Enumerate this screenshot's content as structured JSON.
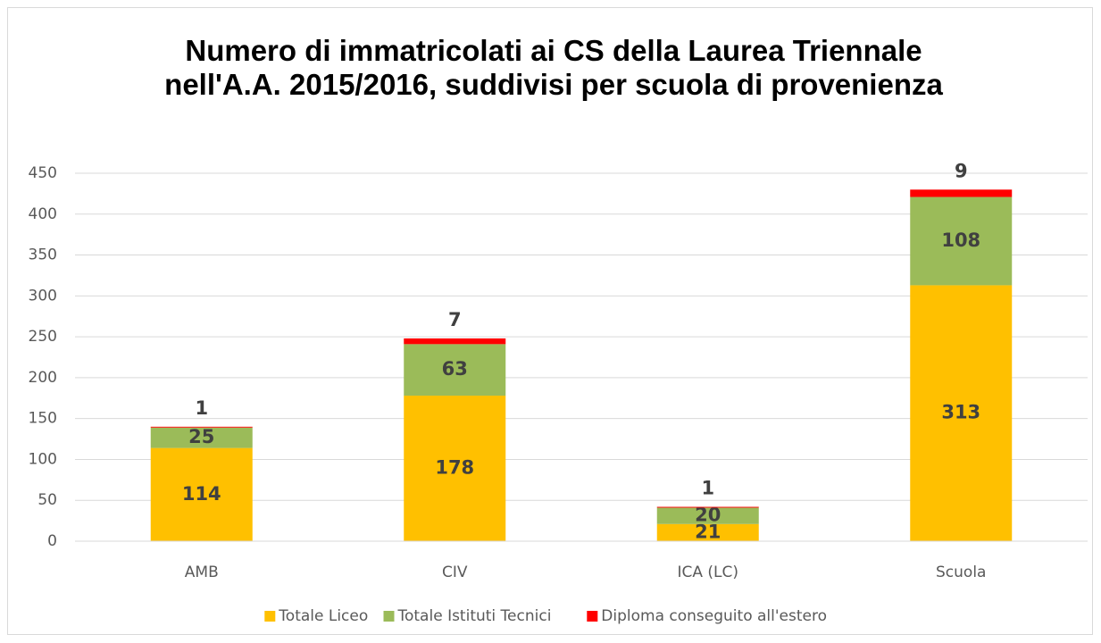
{
  "chart_data": {
    "type": "stacked_bar",
    "title": "Numero di immatricolati ai CS della Laurea Triennale nell'A.A. 2015/2016, suddivisi per scuola di provenienza",
    "categories": [
      "AMB",
      "CIV",
      "ICA (LC)",
      "Scuola"
    ],
    "series": [
      {
        "name": "Totale Liceo",
        "color": "#FFC000",
        "values": [
          114,
          178,
          21,
          313
        ]
      },
      {
        "name": "Totale Istituti Tecnici",
        "color": "#9BBB59",
        "values": [
          25,
          63,
          20,
          108
        ]
      },
      {
        "name": "Diploma conseguito all'estero",
        "color": "#FF0000",
        "values": [
          1,
          7,
          1,
          9
        ]
      }
    ],
    "ylim": [
      0,
      450
    ],
    "yticks": [
      0,
      50,
      100,
      150,
      200,
      250,
      300,
      350,
      400,
      450
    ],
    "grid": true,
    "legend": "bottom"
  }
}
